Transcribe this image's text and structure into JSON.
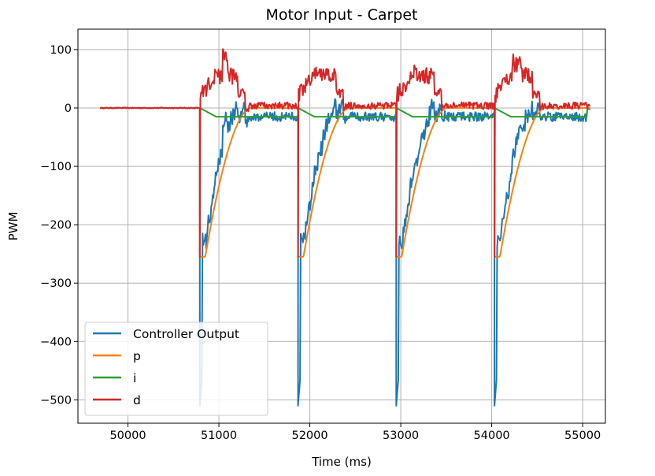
{
  "chart_data": {
    "type": "line",
    "title": "Motor Input - Carpet",
    "xlabel": "Time (ms)",
    "ylabel": "PWM",
    "xlim": [
      49450,
      55250
    ],
    "ylim": [
      -540,
      135
    ],
    "xticks": [
      50000,
      51000,
      52000,
      53000,
      54000,
      55000
    ],
    "yticks": [
      100,
      0,
      -100,
      -200,
      -300,
      -400,
      -500
    ],
    "ytick_labels": [
      "100",
      "0",
      "−100",
      "−200",
      "−300",
      "−400",
      "−500"
    ],
    "grid": true,
    "legend_position": "lower-left",
    "x_start": 49700,
    "x_end": 55080,
    "step_times": [
      50790,
      51870,
      52950,
      54030
    ],
    "series": [
      {
        "name": "Controller Output",
        "color": "#1f77b4",
        "description": "Sum of p, i and d terms; drops to -510 at each step, then recovers to about -15 with noise"
      },
      {
        "name": "p",
        "color": "#ff7f0e"
      },
      {
        "name": "i",
        "color": "#2ca02c"
      },
      {
        "name": "d",
        "color": "#d62728"
      }
    ]
  }
}
